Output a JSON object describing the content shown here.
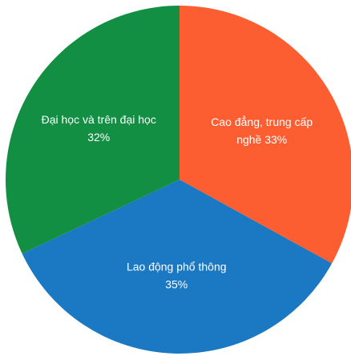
{
  "chart_data": {
    "type": "pie",
    "title": "",
    "slices": [
      {
        "label": "Cao đẳng, trung cấp nghề",
        "label_lines": [
          "Cao đẳng, trung cấp",
          "nghề 33%"
        ],
        "value": 33,
        "color": "#fc5e32"
      },
      {
        "label": "Lao động phổ thông",
        "label_lines": [
          "Lao động phổ thông",
          "35%"
        ],
        "value": 35,
        "color": "#1b78c2"
      },
      {
        "label": "Đại học và trên đại học",
        "label_lines": [
          "Đại học và trên đại học",
          "32%"
        ],
        "value": 32,
        "color": "#138f44"
      }
    ],
    "start_angle": "top",
    "direction": "clockwise",
    "legend": "none"
  }
}
